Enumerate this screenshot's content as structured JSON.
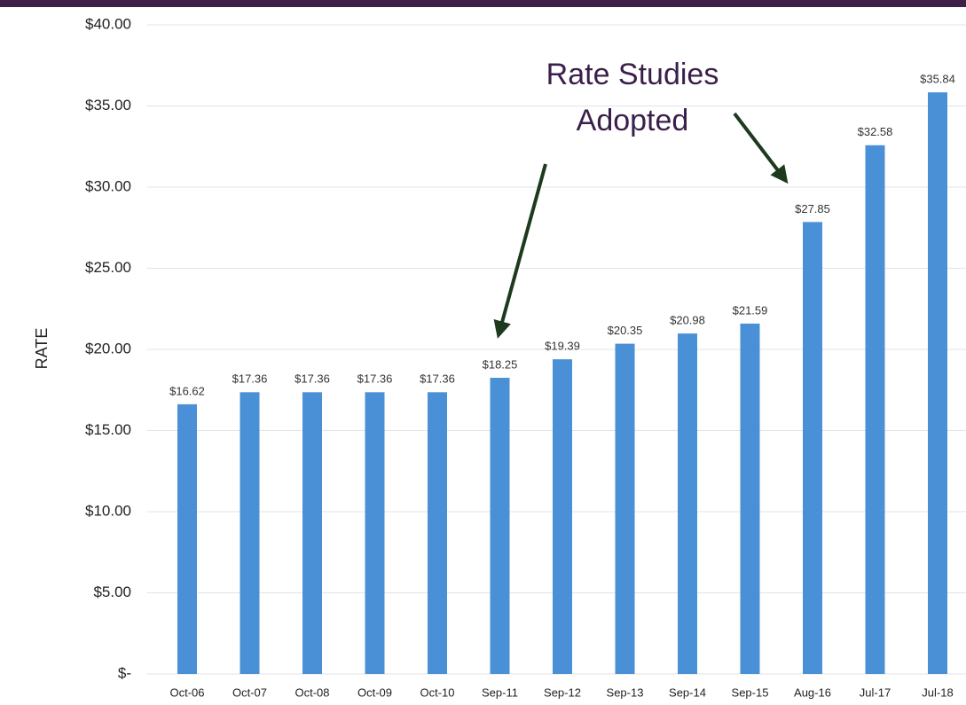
{
  "chart_data": {
    "type": "bar",
    "y_label": "RATE",
    "annotation": [
      "Rate Studies",
      "Adopted"
    ],
    "categories": [
      "Oct-06",
      "Oct-07",
      "Oct-08",
      "Oct-09",
      "Oct-10",
      "Sep-11",
      "Sep-12",
      "Sep-13",
      "Sep-14",
      "Sep-15",
      "Aug-16",
      "Jul-17",
      "Jul-18"
    ],
    "values": [
      16.62,
      17.36,
      17.36,
      17.36,
      17.36,
      18.25,
      19.39,
      20.35,
      20.98,
      21.59,
      27.85,
      32.58,
      35.84
    ],
    "value_labels": [
      "$16.62",
      "$17.36",
      "$17.36",
      "$17.36",
      "$17.36",
      "$18.25",
      "$19.39",
      "$20.35",
      "$20.98",
      "$21.59",
      "$27.85",
      "$32.58",
      "$35.84"
    ],
    "color": "#4a90d6",
    "ylim": [
      0,
      40
    ],
    "yticks": [
      {
        "value": 0,
        "label": "$-"
      },
      {
        "value": 5,
        "label": "$5.00"
      },
      {
        "value": 10,
        "label": "$10.00"
      },
      {
        "value": 15,
        "label": "$15.00"
      },
      {
        "value": 20,
        "label": "$20.00"
      },
      {
        "value": 25,
        "label": "$25.00"
      },
      {
        "value": 30,
        "label": "$30.00"
      },
      {
        "value": 35,
        "label": "$35.00"
      },
      {
        "value": 40,
        "label": "$40.00"
      }
    ],
    "grid": true
  }
}
